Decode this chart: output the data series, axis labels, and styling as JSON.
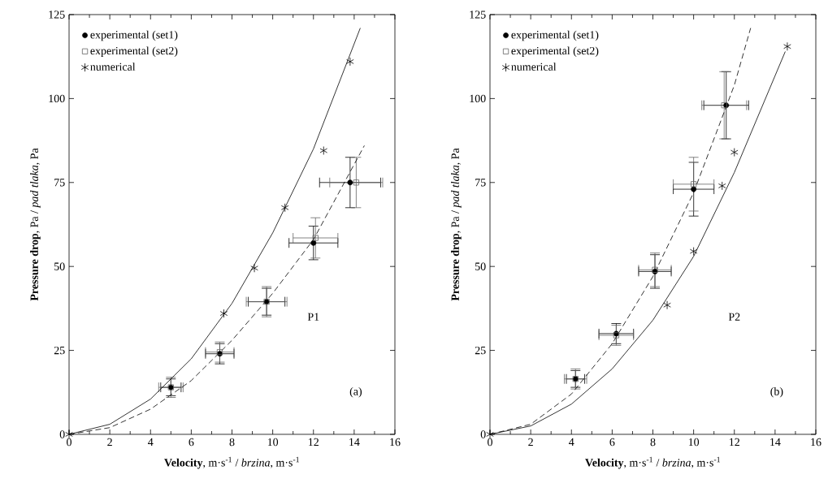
{
  "chart_data": [
    {
      "type": "scatter",
      "xlabel": "**Velocity**, m·s$^{-1}$ / *brzina*, m·s$^{-1}$",
      "ylabel": "**Pressure drop**, Pa / *pad tlaka*, Pa",
      "xlim": [
        0,
        16
      ],
      "ylim": [
        0,
        125
      ],
      "xticks": [
        0,
        2,
        4,
        6,
        8,
        10,
        12,
        14,
        16
      ],
      "yticks": [
        0,
        25,
        50,
        75,
        100,
        125
      ],
      "legend": "top left",
      "grid": false,
      "annotations": [
        "P1",
        "(a)"
      ],
      "series": [
        {
          "name": "experimental (set1)",
          "color": "#000000",
          "marker": "circle",
          "x": [
            5.0,
            7.4,
            9.7,
            12.0,
            13.8
          ],
          "values": [
            14,
            24,
            39.5,
            57,
            75
          ],
          "errors": [
            2.5,
            3,
            4,
            5,
            7.5
          ],
          "xerrors": [
            0.5,
            0.7,
            0.9,
            1.2,
            1.5
          ]
        },
        {
          "name": "experimental (set2)",
          "color": "#666666",
          "marker": "square",
          "x": [
            5.0,
            7.4,
            9.7,
            12.1,
            14.1
          ],
          "values": [
            14,
            24.5,
            39.5,
            58.5,
            75
          ],
          "errors": [
            3,
            3,
            4.5,
            6,
            7.5
          ],
          "xerrors": [
            0.6,
            0.7,
            1.0,
            1.1,
            1.3
          ]
        },
        {
          "name": "numerical",
          "color": "#000000",
          "marker": "cross",
          "x": [
            0,
            7.6,
            9.1,
            10.6,
            12.5,
            13.8
          ],
          "values": [
            0,
            36,
            49.5,
            67.5,
            84.5,
            111
          ]
        },
        {
          "type": "line",
          "color": "#000000",
          "marker": "none",
          "line_style": "solid",
          "x": [
            0,
            2,
            4,
            6,
            8,
            10,
            12,
            14.3
          ],
          "values": [
            0,
            3,
            10.5,
            22.5,
            39,
            60,
            85,
            121
          ]
        },
        {
          "type": "line",
          "color": "#000000",
          "marker": "none",
          "line_style": "dashed",
          "x": [
            0,
            2,
            4,
            6,
            8,
            10,
            12,
            14.5
          ],
          "values": [
            0,
            2,
            7.5,
            16,
            28,
            42,
            58,
            86
          ]
        }
      ]
    },
    {
      "type": "scatter",
      "xlabel": "**Velocity**, m·s$^{-1}$ / *brzina*, m·s$^{-1}$",
      "ylabel": "**Pressure drop**, Pa / *pad tlaka*, Pa",
      "xlim": [
        0,
        16
      ],
      "ylim": [
        0,
        125
      ],
      "xticks": [
        0,
        2,
        4,
        6,
        8,
        10,
        12,
        14,
        16
      ],
      "yticks": [
        0,
        25,
        50,
        75,
        100,
        125
      ],
      "legend": "top left",
      "grid": false,
      "annotations": [
        "P2",
        "(b)"
      ],
      "series": [
        {
          "name": "experimental (set1)",
          "color": "#000000",
          "marker": "circle",
          "x": [
            4.2,
            6.2,
            8.1,
            10.0,
            11.6
          ],
          "values": [
            16.5,
            30,
            48.5,
            73,
            98
          ],
          "errors": [
            2.5,
            3,
            5,
            8,
            10
          ],
          "xerrors": [
            0.45,
            0.85,
            0.8,
            1.0,
            1.1
          ]
        },
        {
          "name": "experimental (set2)",
          "color": "#666666",
          "marker": "square",
          "x": [
            4.2,
            6.2,
            8.1,
            10.0,
            11.5
          ],
          "values": [
            16.5,
            29.5,
            49,
            74.5,
            98
          ],
          "errors": [
            3,
            3,
            5,
            8,
            10
          ],
          "xerrors": [
            0.55,
            0.85,
            0.8,
            1.0,
            1.1
          ]
        },
        {
          "name": "numerical",
          "color": "#000000",
          "marker": "cross",
          "x": [
            0,
            8.7,
            10.0,
            11.4,
            12.0,
            14.6
          ],
          "values": [
            0,
            38.5,
            54.5,
            74,
            84,
            115.5
          ]
        },
        {
          "type": "line",
          "color": "#000000",
          "marker": "none",
          "line_style": "solid",
          "x": [
            0,
            2,
            4,
            6,
            8,
            10,
            12,
            14.5
          ],
          "values": [
            0,
            2.5,
            9,
            19.5,
            34,
            53,
            78,
            114
          ]
        },
        {
          "type": "line",
          "color": "#000000",
          "marker": "none",
          "line_style": "dashed",
          "x": [
            0,
            2,
            4,
            6,
            8,
            10,
            12,
            12.8
          ],
          "values": [
            0,
            3,
            12,
            27,
            47,
            72,
            104,
            121
          ]
        }
      ]
    }
  ]
}
